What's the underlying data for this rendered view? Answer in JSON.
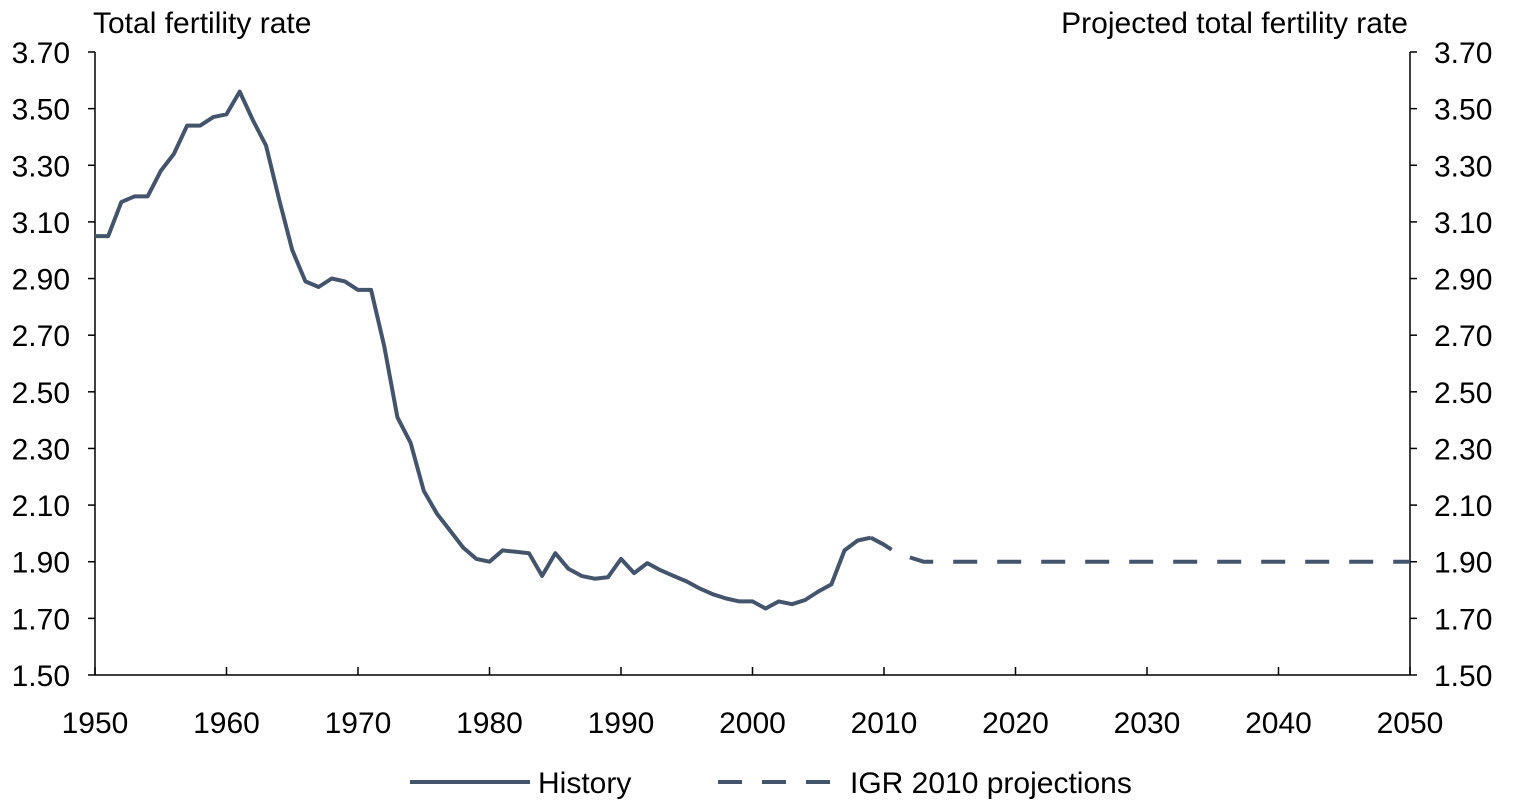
{
  "chart_data": {
    "type": "line",
    "left_axis_title": "Total fertility rate",
    "right_axis_title": "Projected total fertility rate",
    "xlim": [
      1950,
      2050
    ],
    "ylim": [
      1.5,
      3.7
    ],
    "x_ticks": [
      "1950",
      "1960",
      "1970",
      "1980",
      "1990",
      "2000",
      "2010",
      "2020",
      "2030",
      "2040",
      "2050"
    ],
    "y_ticks": [
      "1.50",
      "1.70",
      "1.90",
      "2.10",
      "2.30",
      "2.50",
      "2.70",
      "2.90",
      "3.10",
      "3.30",
      "3.50",
      "3.70"
    ],
    "grid": false,
    "legend_position": "bottom-center",
    "colors": {
      "series": "#44546a"
    },
    "series": [
      {
        "name": "History",
        "style": "solid",
        "x": [
          1950,
          1951,
          1952,
          1953,
          1954,
          1955,
          1956,
          1957,
          1958,
          1959,
          1960,
          1961,
          1962,
          1963,
          1964,
          1965,
          1966,
          1967,
          1968,
          1969,
          1970,
          1971,
          1972,
          1973,
          1974,
          1975,
          1976,
          1977,
          1978,
          1979,
          1980,
          1981,
          1982,
          1983,
          1984,
          1985,
          1986,
          1987,
          1988,
          1989,
          1990,
          1991,
          1992,
          1993,
          1994,
          1995,
          1996,
          1997,
          1998,
          1999,
          2000,
          2001,
          2002,
          2003,
          2004,
          2005,
          2006,
          2007,
          2008,
          2009
        ],
        "y": [
          3.05,
          3.05,
          3.17,
          3.19,
          3.19,
          3.28,
          3.34,
          3.44,
          3.44,
          3.47,
          3.48,
          3.56,
          3.46,
          3.37,
          3.18,
          3.0,
          2.89,
          2.87,
          2.9,
          2.89,
          2.86,
          2.86,
          2.66,
          2.41,
          2.32,
          2.15,
          2.07,
          2.01,
          1.95,
          1.91,
          1.9,
          1.94,
          1.935,
          1.93,
          1.85,
          1.93,
          1.875,
          1.85,
          1.84,
          1.845,
          1.91,
          1.86,
          1.895,
          1.87,
          1.85,
          1.83,
          1.805,
          1.785,
          1.77,
          1.76,
          1.76,
          1.735,
          1.76,
          1.75,
          1.765,
          1.795,
          1.82,
          1.94,
          1.975,
          1.985
        ]
      },
      {
        "name": "IGR 2010 projections",
        "style": "dashed",
        "x": [
          2009,
          2010,
          2011,
          2012,
          2013,
          2020,
          2030,
          2040,
          2050
        ],
        "y": [
          1.985,
          1.96,
          1.93,
          1.915,
          1.9,
          1.9,
          1.9,
          1.9,
          1.9
        ]
      }
    ]
  }
}
